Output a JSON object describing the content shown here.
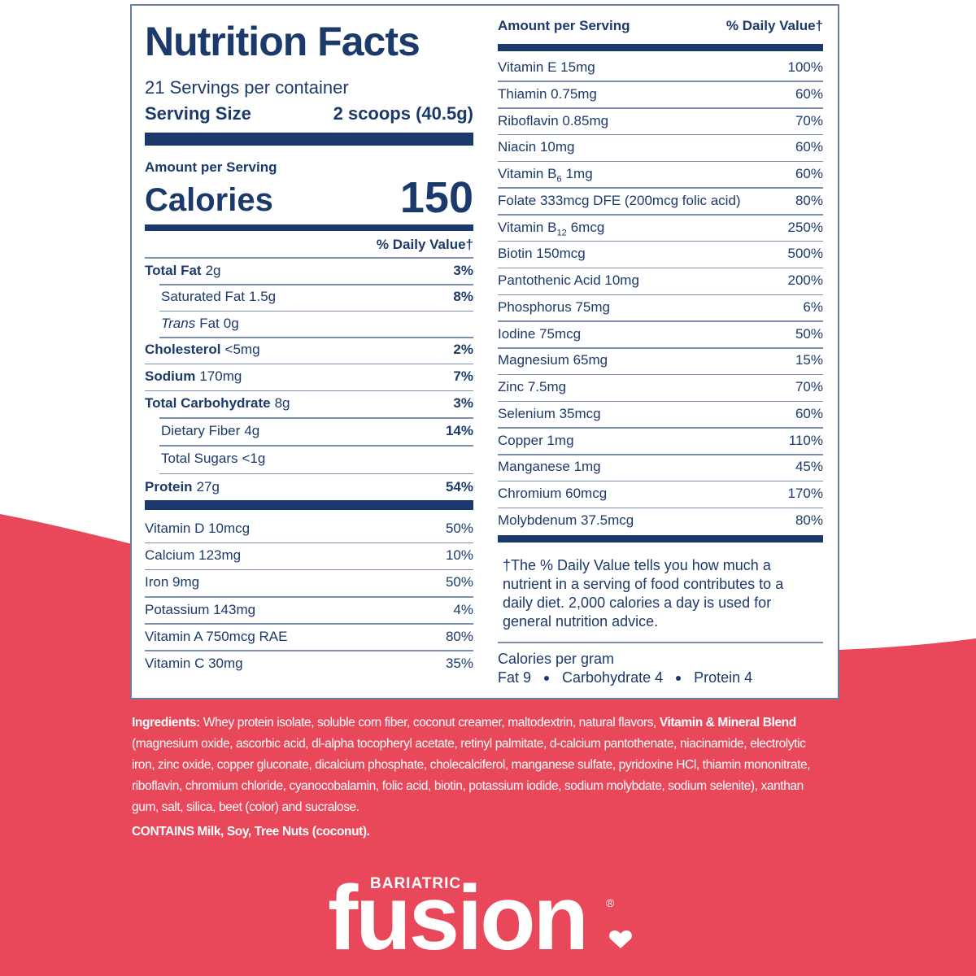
{
  "label": {
    "title": "Nutrition Facts",
    "servings": "21 Servings per container",
    "serving_size_label": "Serving Size",
    "serving_size": "2 scoops (40.5g)",
    "amount_per_serving": "Amount per Serving",
    "calories_label": "Calories",
    "calories": 150,
    "daily_value_header": "% Daily Value†",
    "nutrients": [
      {
        "name": "Total Fat",
        "amount": "2g",
        "dv": "3%",
        "bold": true
      },
      {
        "name": "Saturated Fat",
        "amount": "1.5g",
        "dv": "8%",
        "indent": true
      },
      {
        "name_italic": "Trans",
        "name": "Fat",
        "amount": "0g",
        "indent": true
      },
      {
        "name": "Cholesterol",
        "amount": "<5mg",
        "dv": "2%",
        "bold": true
      },
      {
        "name": "Sodium",
        "amount": "170mg",
        "dv": "7%",
        "bold": true
      },
      {
        "name": "Total Carbohydrate",
        "amount": "8g",
        "dv": "3%",
        "bold": true
      },
      {
        "name": "Dietary Fiber",
        "amount": "4g",
        "dv": "14%",
        "indent": true
      },
      {
        "name": "Total Sugars",
        "amount": "<1g",
        "indent": true,
        "indent2": true
      },
      {
        "name": "Protein",
        "amount": "27g",
        "dv": "54%",
        "bold": true
      }
    ],
    "vitamins": [
      {
        "name": "Vitamin D 10mcg",
        "dv": "50%"
      },
      {
        "name": "Calcium 123mg",
        "dv": "10%"
      },
      {
        "name": "Iron 9mg",
        "dv": "50%"
      },
      {
        "name": "Potassium 143mg",
        "dv": "4%"
      },
      {
        "name": "Vitamin A 750mcg RAE",
        "dv": "80%"
      },
      {
        "name": "Vitamin C 30mg",
        "dv": "35%"
      }
    ],
    "right_header": {
      "amount": "Amount per Serving",
      "dv": "% Daily Value†"
    },
    "right_rows": [
      {
        "name": "Vitamin E 15mg",
        "dv": "100%"
      },
      {
        "name": "Thiamin 0.75mg",
        "dv": "60%"
      },
      {
        "name": "Riboflavin 0.85mg",
        "dv": "70%"
      },
      {
        "name": "Niacin 10mg",
        "dv": "60%"
      },
      {
        "name": "Vitamin B",
        "sub": "6",
        "amount": "1mg",
        "dv": "60%"
      },
      {
        "name": "Folate 333mcg DFE (200mcg folic acid)",
        "dv": "80%"
      },
      {
        "name": "Vitamin B",
        "sub": "12",
        "amount": "6mcg",
        "dv": "250%"
      },
      {
        "name": "Biotin 150mcg",
        "dv": "500%"
      },
      {
        "name": "Pantothenic Acid 10mg",
        "dv": "200%"
      },
      {
        "name": "Phosphorus 75mg",
        "dv": "6%"
      },
      {
        "name": "Iodine 75mcg",
        "dv": "50%"
      },
      {
        "name": "Magnesium 65mg",
        "dv": "15%"
      },
      {
        "name": "Zinc 7.5mg",
        "dv": "70%"
      },
      {
        "name": "Selenium 35mcg",
        "dv": "60%"
      },
      {
        "name": "Copper 1mg",
        "dv": "110%"
      },
      {
        "name": "Manganese 1mg",
        "dv": "45%"
      },
      {
        "name": "Chromium 60mcg",
        "dv": "170%"
      },
      {
        "name": "Molybdenum 37.5mcg",
        "dv": "80%"
      }
    ],
    "footnote": "†The % Daily Value tells you how much a nutrient in a serving of food contributes to a daily diet. 2,000 calories a day is used for general nutrition advice.",
    "calories_per_gram": {
      "title": "Calories per gram",
      "items": [
        "Fat 9",
        "Carbohydrate 4",
        "Protein 4"
      ]
    }
  },
  "ingredients": {
    "parts": [
      {
        "text": "Ingredients:",
        "bold": true
      },
      {
        "text": " Whey protein isolate, soluble corn fiber, coconut creamer, maltodextrin, natural flavors, "
      },
      {
        "text": "Vitamin & Mineral Blend",
        "bold": true
      },
      {
        "text": " (magnesium oxide, ascorbic acid, dl-alpha tocopheryl acetate, retinyl palmitate, d-calcium pantothenate, niacinamide, electrolytic iron, zinc oxide, copper gluconate, dicalcium phosphate, cholecalciferol, manganese sulfate, pyridoxine HCl, thiamin mononitrate, riboflavin, chromium chloride, cyanocobalamin, folic acid, biotin, potassium iodide, sodium molybdate, sodium selenite), xanthan gum, salt, silica, beet (color) and sucralose."
      }
    ],
    "contains": "CONTAINS Milk, Soy, Tree Nuts (coconut)."
  },
  "logo": {
    "brand": "BARIATRIC",
    "name": "fusion",
    "mark": "®"
  }
}
